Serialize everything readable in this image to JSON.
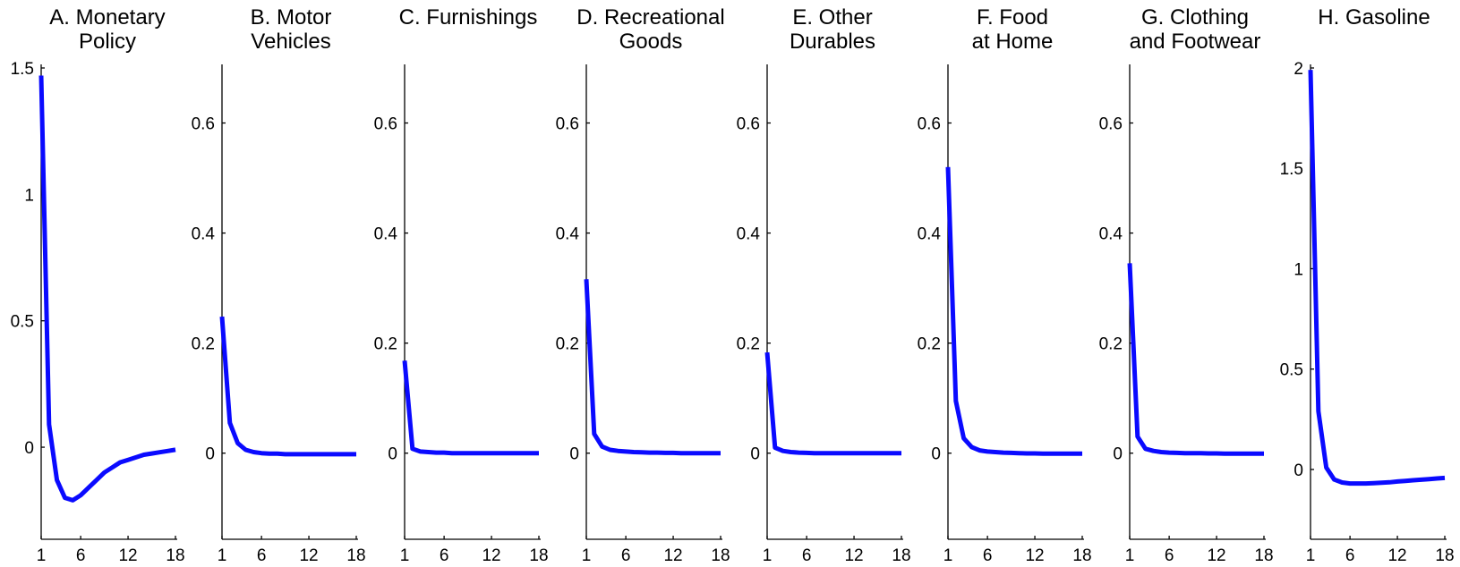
{
  "line_color": "#0a0aff",
  "chart_data": [
    {
      "type": "line",
      "title": [
        "A. Monetary",
        "Policy"
      ],
      "xlabel": "",
      "ylabel": "",
      "xlim": [
        1,
        18
      ],
      "ylim": [
        -0.35,
        1.5
      ],
      "xticks": [
        1,
        6,
        12,
        18
      ],
      "yticks": [
        0,
        0.5,
        1,
        1.5
      ],
      "ytick_labels": [
        "0",
        "0.5",
        "1",
        "1.5"
      ],
      "series": [
        {
          "x": [
            1,
            2,
            3,
            4,
            5,
            6,
            7,
            8,
            9,
            10,
            11,
            12,
            13,
            14,
            15,
            16,
            17,
            18
          ],
          "values": [
            1.47,
            0.09,
            -0.13,
            -0.2,
            -0.21,
            -0.19,
            -0.16,
            -0.13,
            -0.1,
            -0.08,
            -0.06,
            -0.05,
            -0.04,
            -0.03,
            -0.025,
            -0.02,
            -0.015,
            -0.01
          ]
        }
      ]
    },
    {
      "type": "line",
      "title": [
        "B. Motor",
        "Vehicles"
      ],
      "xlabel": "",
      "ylabel": "",
      "xlim": [
        1,
        18
      ],
      "ylim": [
        -0.15,
        0.7
      ],
      "xticks": [
        1,
        6,
        12,
        18
      ],
      "yticks": [
        0,
        0.2,
        0.4,
        0.6
      ],
      "ytick_labels": [
        "0",
        "0.2",
        "0.4",
        "0.6"
      ],
      "series": [
        {
          "x": [
            1,
            2,
            3,
            4,
            5,
            6,
            7,
            8,
            9,
            10,
            11,
            12,
            13,
            14,
            15,
            16,
            17,
            18
          ],
          "values": [
            0.248,
            0.055,
            0.018,
            0.006,
            0.002,
            0.0,
            -0.001,
            -0.001,
            -0.002,
            -0.002,
            -0.002,
            -0.002,
            -0.002,
            -0.002,
            -0.002,
            -0.002,
            -0.002,
            -0.002
          ]
        }
      ]
    },
    {
      "type": "line",
      "title": [
        "C. Furnishings"
      ],
      "xlabel": "",
      "ylabel": "",
      "xlim": [
        1,
        18
      ],
      "ylim": [
        -0.15,
        0.7
      ],
      "xticks": [
        1,
        6,
        12,
        18
      ],
      "yticks": [
        0,
        0.2,
        0.4,
        0.6
      ],
      "ytick_labels": [
        "0",
        "0.2",
        "0.4",
        "0.6"
      ],
      "series": [
        {
          "x": [
            1,
            2,
            3,
            4,
            5,
            6,
            7,
            8,
            9,
            10,
            11,
            12,
            13,
            14,
            15,
            16,
            17,
            18
          ],
          "values": [
            0.168,
            0.008,
            0.003,
            0.002,
            0.001,
            0.001,
            0.0,
            0.0,
            0.0,
            0.0,
            0.0,
            0.0,
            0.0,
            0.0,
            0.0,
            0.0,
            0.0,
            0.0
          ]
        }
      ]
    },
    {
      "type": "line",
      "title": [
        "D. Recreational",
        "Goods"
      ],
      "xlabel": "",
      "ylabel": "",
      "xlim": [
        1,
        18
      ],
      "ylim": [
        -0.15,
        0.7
      ],
      "xticks": [
        1,
        6,
        12,
        18
      ],
      "yticks": [
        0,
        0.2,
        0.4,
        0.6
      ],
      "ytick_labels": [
        "0",
        "0.2",
        "0.4",
        "0.6"
      ],
      "series": [
        {
          "x": [
            1,
            2,
            3,
            4,
            5,
            6,
            7,
            8,
            9,
            10,
            11,
            12,
            13,
            14,
            15,
            16,
            17,
            18
          ],
          "values": [
            0.316,
            0.035,
            0.012,
            0.006,
            0.004,
            0.003,
            0.002,
            0.0015,
            0.001,
            0.001,
            0.0005,
            0.0005,
            0.0,
            0.0,
            0.0,
            0.0,
            0.0,
            0.0
          ]
        }
      ]
    },
    {
      "type": "line",
      "title": [
        "E. Other",
        "Durables"
      ],
      "xlabel": "",
      "ylabel": "",
      "xlim": [
        1,
        18
      ],
      "ylim": [
        -0.15,
        0.7
      ],
      "xticks": [
        1,
        6,
        12,
        18
      ],
      "yticks": [
        0,
        0.2,
        0.4,
        0.6
      ],
      "ytick_labels": [
        "0",
        "0.2",
        "0.4",
        "0.6"
      ],
      "series": [
        {
          "x": [
            1,
            2,
            3,
            4,
            5,
            6,
            7,
            8,
            9,
            10,
            11,
            12,
            13,
            14,
            15,
            16,
            17,
            18
          ],
          "values": [
            0.183,
            0.01,
            0.004,
            0.002,
            0.001,
            0.0005,
            0.0,
            0.0,
            0.0,
            0.0,
            0.0,
            0.0,
            0.0,
            0.0,
            0.0,
            0.0,
            0.0,
            0.0
          ]
        }
      ]
    },
    {
      "type": "line",
      "title": [
        "F. Food",
        "at Home"
      ],
      "xlabel": "",
      "ylabel": "",
      "xlim": [
        1,
        18
      ],
      "ylim": [
        -0.15,
        0.7
      ],
      "xticks": [
        1,
        6,
        12,
        18
      ],
      "yticks": [
        0,
        0.2,
        0.4,
        0.6
      ],
      "ytick_labels": [
        "0",
        "0.2",
        "0.4",
        "0.6"
      ],
      "series": [
        {
          "x": [
            1,
            2,
            3,
            4,
            5,
            6,
            7,
            8,
            9,
            10,
            11,
            12,
            13,
            14,
            15,
            16,
            17,
            18
          ],
          "values": [
            0.52,
            0.095,
            0.027,
            0.011,
            0.005,
            0.003,
            0.002,
            0.001,
            0.0005,
            0.0,
            -0.0005,
            -0.0005,
            -0.001,
            -0.001,
            -0.001,
            -0.001,
            -0.001,
            -0.001
          ]
        }
      ]
    },
    {
      "type": "line",
      "title": [
        "G. Clothing",
        "and Footwear"
      ],
      "xlabel": "",
      "ylabel": "",
      "xlim": [
        1,
        18
      ],
      "ylim": [
        -0.15,
        0.7
      ],
      "xticks": [
        1,
        6,
        12,
        18
      ],
      "yticks": [
        0,
        0.2,
        0.4,
        0.6
      ],
      "ytick_labels": [
        "0",
        "0.2",
        "0.4",
        "0.6"
      ],
      "series": [
        {
          "x": [
            1,
            2,
            3,
            4,
            5,
            6,
            7,
            8,
            9,
            10,
            11,
            12,
            13,
            14,
            15,
            16,
            17,
            18
          ],
          "values": [
            0.345,
            0.03,
            0.008,
            0.004,
            0.002,
            0.001,
            0.0005,
            0.0,
            0.0,
            0.0,
            -0.0005,
            -0.0005,
            -0.001,
            -0.001,
            -0.001,
            -0.001,
            -0.001,
            -0.001
          ]
        }
      ]
    },
    {
      "type": "line",
      "title": [
        "H. Gasoline"
      ],
      "xlabel": "",
      "ylabel": "",
      "xlim": [
        1,
        18
      ],
      "ylim": [
        -0.33,
        2
      ],
      "xticks": [
        1,
        6,
        12,
        18
      ],
      "yticks": [
        0,
        0.5,
        1,
        1.5,
        2
      ],
      "ytick_labels": [
        "0",
        "0.5",
        "1",
        "1.5",
        "2"
      ],
      "series": [
        {
          "x": [
            1,
            2,
            3,
            4,
            5,
            6,
            7,
            8,
            9,
            10,
            11,
            12,
            13,
            14,
            15,
            16,
            17,
            18
          ],
          "values": [
            1.99,
            0.29,
            0.01,
            -0.05,
            -0.065,
            -0.07,
            -0.07,
            -0.07,
            -0.068,
            -0.066,
            -0.064,
            -0.06,
            -0.057,
            -0.054,
            -0.051,
            -0.048,
            -0.045,
            -0.042
          ]
        }
      ]
    }
  ]
}
